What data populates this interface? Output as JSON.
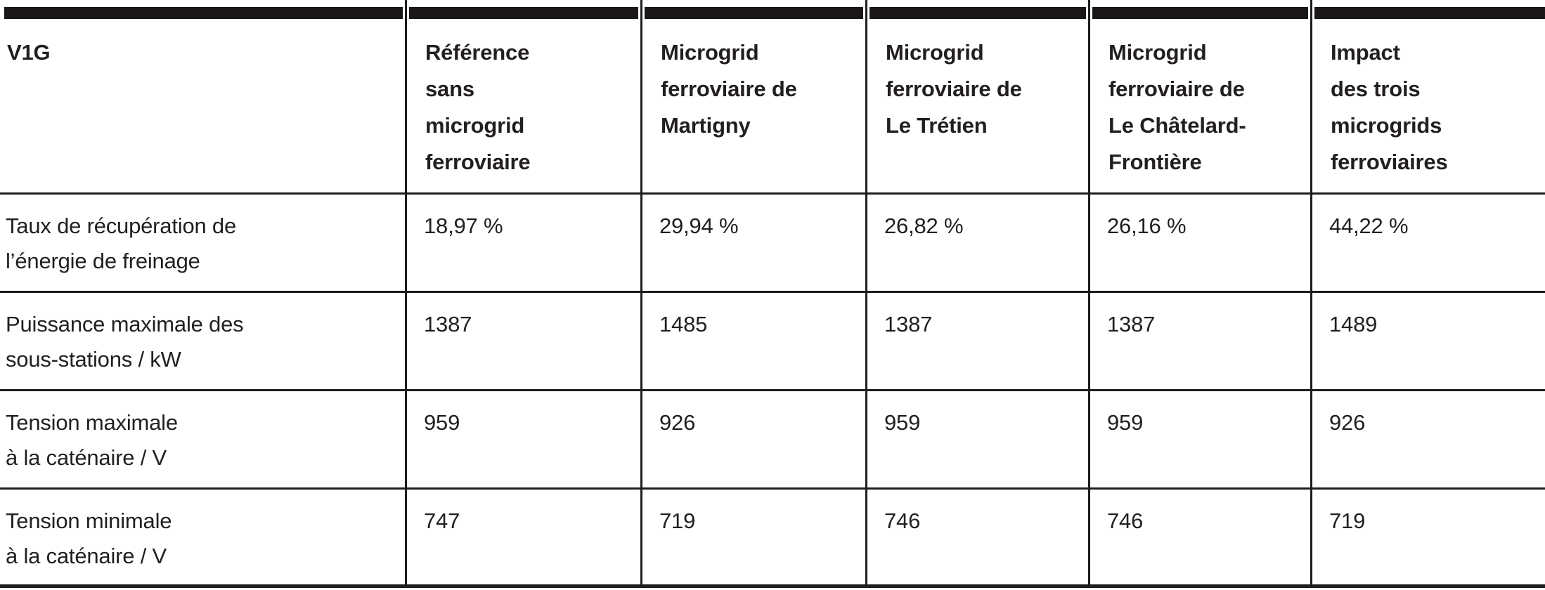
{
  "table": {
    "corner_label": "V1G",
    "columns": [
      {
        "label": "Référence\nsans\nmicrogrid\nferroviaire"
      },
      {
        "label": "Microgrid\nferroviaire de\nMartigny"
      },
      {
        "label": "Microgrid\nferroviaire de\nLe Trétien"
      },
      {
        "label": "Microgrid\nferroviaire de\nLe Châtelard-\nFrontière"
      },
      {
        "label": "Impact\ndes trois\nmicrogrids\nferroviaires"
      }
    ],
    "rows": [
      {
        "label": "Taux de récupération de\nl’énergie de freinage",
        "values": [
          "18,97 %",
          "29,94 %",
          "26,82 %",
          "26,16 %",
          "44,22 %"
        ]
      },
      {
        "label": "Puissance maximale des\nsous-stations / kW",
        "values": [
          "1387",
          "1485",
          "1387",
          "1387",
          "1489"
        ]
      },
      {
        "label": "Tension maximale\nà la caténaire / V",
        "values": [
          "959",
          "926",
          "959",
          "959",
          "926"
        ]
      },
      {
        "label": "Tension minimale\nà la caténaire / V",
        "values": [
          "747",
          "719",
          "746",
          "746",
          "719"
        ]
      }
    ],
    "colors": {
      "bar": "#1b1718",
      "line": "#1d1d1b",
      "text": "#231f20",
      "background": "#ffffff"
    }
  },
  "chart_data": {
    "type": "table",
    "title": "V1G",
    "columns": [
      "V1G",
      "Référence sans microgrid ferroviaire",
      "Microgrid ferroviaire de Martigny",
      "Microgrid ferroviaire de Le Trétien",
      "Microgrid ferroviaire de Le Châtelard-Frontière",
      "Impact des trois microgrids ferroviaires"
    ],
    "rows": [
      [
        "Taux de récupération de l’énergie de freinage",
        "18,97 %",
        "29,94 %",
        "26,82 %",
        "26,16 %",
        "44,22 %"
      ],
      [
        "Puissance maximale des sous-stations / kW",
        "1387",
        "1485",
        "1387",
        "1387",
        "1489"
      ],
      [
        "Tension maximale à la caténaire / V",
        "959",
        "926",
        "959",
        "959",
        "926"
      ],
      [
        "Tension minimale à la caténaire / V",
        "747",
        "719",
        "746",
        "746",
        "719"
      ]
    ]
  }
}
